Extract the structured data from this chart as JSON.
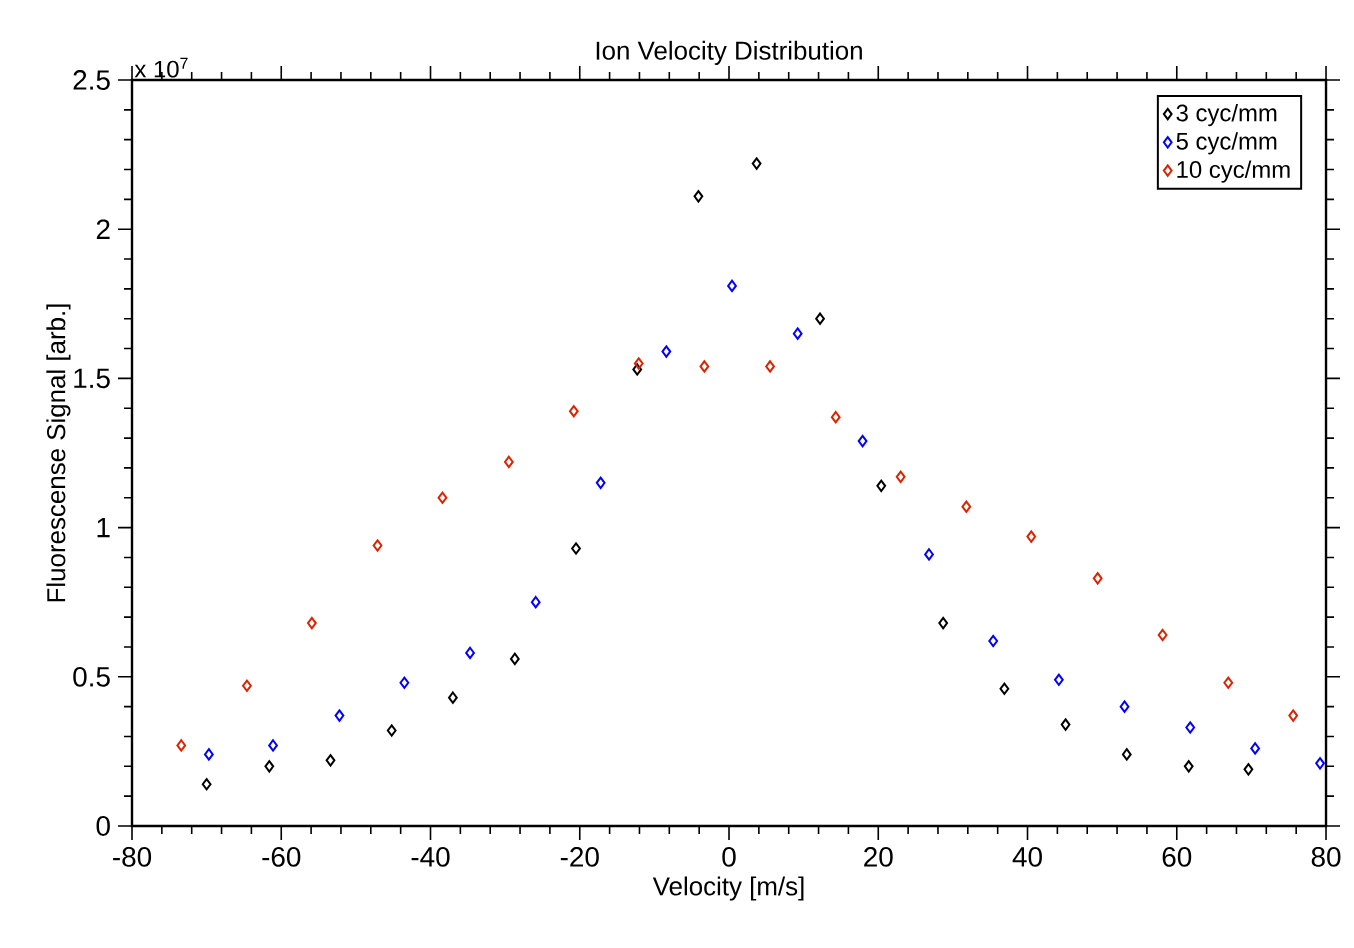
{
  "chart_data": {
    "type": "scatter",
    "title": "Ion Velocity Distribution",
    "xlabel": "Velocity [m/s]",
    "ylabel": "Fluorescense Signal [arb.]",
    "annotations": [
      "x 10$^{7}$"
    ],
    "xlim": [
      -80,
      80
    ],
    "xticks": [
      -80,
      -60,
      -40,
      -20,
      0,
      20,
      40,
      60,
      80
    ],
    "ylim": [
      0,
      2.5
    ],
    "yticks": [
      0,
      0.5,
      1,
      1.5,
      2,
      2.5
    ],
    "legend": "top right",
    "marker": "diamond",
    "grid": false,
    "series": [
      {
        "name": "3 cyc/mm",
        "color": "#000000",
        "x": [
          -70.0,
          -61.6,
          -53.4,
          -45.2,
          -37.0,
          -28.7,
          -20.5,
          -12.3,
          -4.1,
          3.7,
          12.2,
          20.4,
          28.7,
          36.9,
          45.1,
          53.3,
          61.6,
          69.6
        ],
        "values": [
          0.14,
          0.2,
          0.22,
          0.32,
          0.43,
          0.56,
          0.93,
          1.53,
          2.11,
          2.22,
          1.7,
          1.14,
          0.68,
          0.46,
          0.34,
          0.24,
          0.2,
          0.19
        ]
      },
      {
        "name": "5 cyc/mm",
        "color": "#0000ff",
        "x": [
          -69.7,
          -61.1,
          -52.2,
          -43.5,
          -34.7,
          -25.9,
          -17.2,
          -8.4,
          0.4,
          9.2,
          17.9,
          26.8,
          35.4,
          44.2,
          53.0,
          61.8,
          70.5,
          79.2
        ],
        "values": [
          0.24,
          0.27,
          0.37,
          0.48,
          0.58,
          0.75,
          1.15,
          1.59,
          1.81,
          1.65,
          1.29,
          0.91,
          0.62,
          0.49,
          0.4,
          0.33,
          0.26,
          0.21
        ]
      },
      {
        "name": "10 cyc/mm",
        "color": "#dd2200",
        "x": [
          -73.4,
          -64.6,
          -55.9,
          -47.1,
          -38.4,
          -29.5,
          -20.8,
          -12.1,
          -3.3,
          5.5,
          14.3,
          23.0,
          31.8,
          40.5,
          49.4,
          58.1,
          66.9,
          75.6
        ],
        "values": [
          0.27,
          0.47,
          0.68,
          0.94,
          1.1,
          1.22,
          1.39,
          1.55,
          1.54,
          1.54,
          1.37,
          1.17,
          1.07,
          0.97,
          0.83,
          0.64,
          0.48,
          0.37
        ]
      }
    ]
  }
}
